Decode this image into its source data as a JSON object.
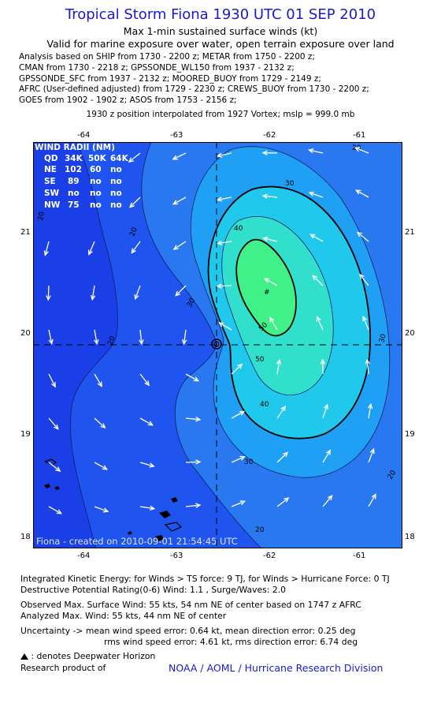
{
  "header": {
    "title": "Tropical Storm Fiona 1930 UTC 01 SEP 2010",
    "subtitle": "Max 1-min sustained surface winds (kt)",
    "validity": "Valid for marine exposure over water, open terrain exposure over land",
    "analysis_lines": [
      "Analysis based on SHIP from 1730 - 2200 z; METAR from 1750 - 2200 z;",
      "CMAN from 1730 - 2218 z; GPSSONDE_WL150 from 1937 - 2132 z;",
      "GPSSONDE_SFC from 1937 - 2132 z; MOORED_BUOY from 1729 - 2149 z;",
      "AFRC (User-defined adjusted) from 1729 - 2230 z; CREWS_BUOY from 1730 - 2200 z;",
      "GOES from 1902 - 1902 z; ASOS from 1753 - 2156 z;"
    ],
    "position_note": "1930 z position interpolated from 1927 Vortex; mslp = 999.0 mb"
  },
  "map": {
    "lon_ticks": [
      "-64",
      "-63",
      "-62",
      "-61"
    ],
    "lat_ticks": [
      "21",
      "20",
      "19",
      "18"
    ],
    "lon_range": [
      -64.5,
      -60.5
    ],
    "lat_range": [
      17.95,
      21.95
    ],
    "center": {
      "lon": -62.55,
      "lat": 19.88
    },
    "max_wind_location": {
      "lon": -62.0,
      "lat": 20.42
    },
    "contour_labels": [
      "20",
      "30",
      "40",
      "50",
      "20",
      "30",
      "40",
      "50",
      "20",
      "30",
      "30",
      "20",
      "20",
      "20"
    ],
    "wind_radii_table": {
      "title": "WIND RADII (NM)",
      "header": [
        "QD",
        "34K",
        "50K",
        "64K"
      ],
      "rows": [
        [
          "NE",
          "102",
          "60",
          "no"
        ],
        [
          "SE",
          "89",
          "no",
          "no"
        ],
        [
          "SW",
          "no",
          "no",
          "no"
        ],
        [
          "NW",
          "75",
          "no",
          "no"
        ]
      ]
    },
    "created_label": "Fiona - created on 2010-09-01 21:54:45 UTC",
    "colors": {
      "ocean_low": "#1a3fe6",
      "level_20": "#2a78f0",
      "level_30": "#1fa0f5",
      "level_40": "#20c8ec",
      "level_50": "#3ce8b8",
      "peak": "#40f088",
      "land": "#000000",
      "crosshair": "#000000",
      "arrow": "#ffffff"
    }
  },
  "footer": {
    "ike": "Integrated Kinetic Energy:  for Winds > TS force: 9 TJ,  for Winds > Hurricane Force: 0 TJ",
    "dpr": "Destructive Potential Rating(0-6)   Wind: 1.1 , Surge/Waves: 2.0",
    "obs_max": "Observed Max. Surface Wind: 55 kts, 54 nm NE of center based on 1747 z AFRC",
    "ana_max": "Analyzed Max. Wind: 55 kts, 44 nm NE of center",
    "uncert1": "Uncertainty -> mean wind speed error: 0.64 kt,   mean direction error: 0.25 deg",
    "uncert2": "rms wind speed error: 4.61 kt,   rms direction error: 6.74 deg",
    "deepwater": ": denotes Deepwater Horizon",
    "research": "Research product of",
    "org": "NOAA / AOML / Hurricane Research Division"
  }
}
